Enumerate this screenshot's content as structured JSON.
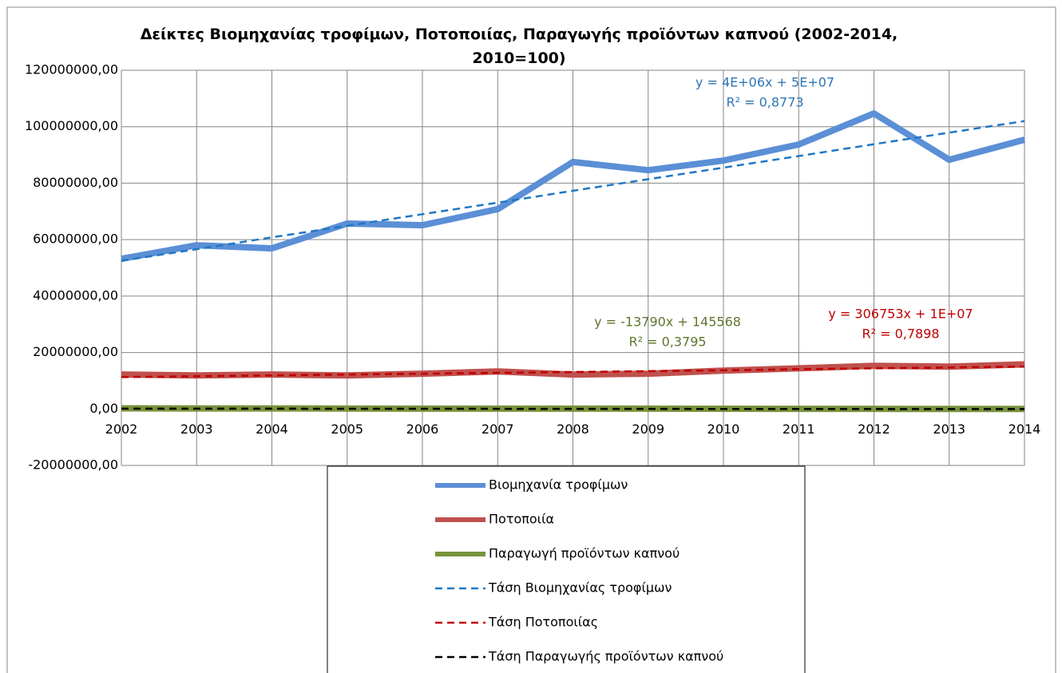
{
  "chart_data": {
    "type": "line",
    "title": "Δείκτες Βιομηχανίας τροφίμων, Ποτοποιίας, Παραγωγής προϊόντων καπνού (2002-2014, 2010=100)",
    "categories": [
      "2002",
      "2003",
      "2004",
      "2005",
      "2006",
      "2007",
      "2008",
      "2009",
      "2010",
      "2011",
      "2012",
      "2013",
      "2014"
    ],
    "series": [
      {
        "name": "Βιομηχανία τροφίμων",
        "color": "#5b8fd6",
        "width": 8,
        "dashed": false,
        "values": [
          53200000,
          58000000,
          56900000,
          65700000,
          65100000,
          70800000,
          87500000,
          84600000,
          88000000,
          93700000,
          104700000,
          88300000,
          95400000
        ]
      },
      {
        "name": "Ποτοποιία",
        "color": "#c0504d",
        "width": 8,
        "dashed": false,
        "values": [
          12200000,
          11900000,
          12200000,
          11900000,
          12500000,
          13300000,
          12200000,
          12500000,
          13600000,
          14400000,
          15300000,
          15000000,
          15800000
        ]
      },
      {
        "name": "Παραγωγή προϊόντων καπνού",
        "color": "#77933c",
        "width": 8,
        "dashed": false,
        "values": [
          210000,
          170000,
          190000,
          150000,
          120000,
          110000,
          120000,
          100000,
          80000,
          50000,
          30000,
          20000,
          10000
        ]
      },
      {
        "name": "Τάση Βιομηχανίας τροφίμων",
        "color": "#1f77c4",
        "width": 2.5,
        "dashed": true,
        "values": [
          52500000,
          56600000,
          60800000,
          64900000,
          69000000,
          73100000,
          77300000,
          81400000,
          85500000,
          89600000,
          93800000,
          97900000,
          102000000
        ]
      },
      {
        "name": "Τάση Ποτοποιίας",
        "color": "#c00000",
        "width": 2.5,
        "dashed": true,
        "values": [
          11300000,
          11600000,
          11900000,
          12200000,
          12500000,
          12800000,
          13100000,
          13400000,
          13700000,
          14100000,
          14400000,
          14700000,
          15000000
        ]
      },
      {
        "name": "Τάση Παραγωγής προϊόντων καπνού",
        "color": "#000000",
        "width": 2.5,
        "dashed": true,
        "values": [
          131778,
          117988,
          104198,
          90408,
          76618,
          62828,
          49038,
          35248,
          21458,
          7668,
          -6122,
          -19912,
          -33702
        ]
      }
    ],
    "ylim": [
      -20000000,
      120000000
    ],
    "yticks": [
      {
        "value": -20000000,
        "label": "-20000000,00"
      },
      {
        "value": 0,
        "label": "0,00"
      },
      {
        "value": 20000000,
        "label": "20000000,00"
      },
      {
        "value": 40000000,
        "label": "40000000,00"
      },
      {
        "value": 60000000,
        "label": "60000000,00"
      },
      {
        "value": 80000000,
        "label": "80000000,00"
      },
      {
        "value": 100000000,
        "label": "100000000,00"
      },
      {
        "value": 120000000,
        "label": "120000000,00"
      }
    ],
    "grid": true,
    "legend": "bottom",
    "annotations": [
      {
        "text": "y = 4E+06x + 5E+07",
        "color": "#2e75b6"
      },
      {
        "text": "R² = 0,8773",
        "color": "#2e75b6"
      },
      {
        "text": "y = -13790x + 145568",
        "color": "#5f7530"
      },
      {
        "text": "R² = 0,3795",
        "color": "#5f7530"
      },
      {
        "text": "y = 306753x + 1E+07",
        "color": "#c00000"
      },
      {
        "text": "R² = 0,7898",
        "color": "#c00000"
      }
    ]
  }
}
